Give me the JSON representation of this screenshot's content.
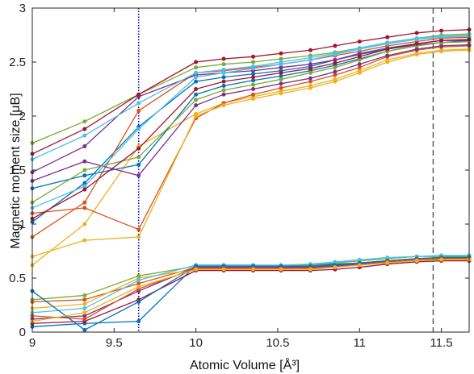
{
  "chart_data": {
    "type": "line",
    "xlabel": "Atomic Volume [Å³]",
    "ylabel": "Magnetic moment size [μB]",
    "xlim": [
      9,
      11.67
    ],
    "ylim": [
      0,
      3
    ],
    "x_ticks": [
      9,
      9.5,
      10,
      10.5,
      11,
      11.5
    ],
    "y_ticks": [
      0,
      0.5,
      1,
      1.5,
      2,
      2.5,
      3
    ],
    "x_tick_labels": [
      "9",
      "9.5",
      "10",
      "10.5",
      "11",
      "11.5"
    ],
    "y_tick_labels": [
      "0",
      "0.5",
      "1",
      "1.5",
      "2",
      "2.5",
      "3"
    ],
    "grid": false,
    "legend": "none",
    "x": [
      9.0,
      9.32,
      9.65,
      10.0,
      10.17,
      10.35,
      10.52,
      10.7,
      10.85,
      11.0,
      11.17,
      11.35,
      11.5,
      11.67
    ],
    "reference_lines": [
      {
        "x": 9.65,
        "style": "dotted",
        "color": "#0000cc"
      },
      {
        "x": 11.45,
        "style": "dashed",
        "color": "#555555"
      }
    ],
    "series": [
      {
        "color": "#0072bd",
        "values": [
          1.02,
          1.38,
          1.9,
          2.32,
          2.36,
          2.39,
          2.42,
          2.46,
          2.52,
          2.58,
          2.63,
          2.67,
          2.7,
          2.7
        ]
      },
      {
        "color": "#d95319",
        "values": [
          0.88,
          1.2,
          2.05,
          2.4,
          2.42,
          2.45,
          2.48,
          2.52,
          2.56,
          2.6,
          2.65,
          2.69,
          2.72,
          2.73
        ]
      },
      {
        "color": "#edb120",
        "values": [
          0.62,
          1.0,
          1.72,
          2.02,
          2.12,
          2.18,
          2.23,
          2.28,
          2.34,
          2.42,
          2.52,
          2.58,
          2.61,
          2.62
        ]
      },
      {
        "color": "#7e2f8e",
        "values": [
          1.48,
          1.72,
          2.18,
          2.38,
          2.4,
          2.42,
          2.45,
          2.48,
          2.52,
          2.57,
          2.62,
          2.66,
          2.68,
          2.7
        ]
      },
      {
        "color": "#77ac30",
        "values": [
          1.75,
          1.95,
          2.2,
          2.45,
          2.48,
          2.5,
          2.53,
          2.56,
          2.59,
          2.63,
          2.68,
          2.72,
          2.75,
          2.76
        ]
      },
      {
        "color": "#4dbeee",
        "values": [
          1.6,
          1.82,
          2.12,
          2.4,
          2.43,
          2.46,
          2.5,
          2.54,
          2.58,
          2.63,
          2.68,
          2.72,
          2.74,
          2.75
        ]
      },
      {
        "color": "#a2142f",
        "values": [
          1.65,
          1.88,
          2.2,
          2.5,
          2.53,
          2.55,
          2.58,
          2.61,
          2.65,
          2.69,
          2.73,
          2.77,
          2.79,
          2.8
        ]
      },
      {
        "color": "#0072bd",
        "values": [
          1.33,
          1.45,
          1.55,
          2.2,
          2.28,
          2.33,
          2.37,
          2.42,
          2.47,
          2.53,
          2.6,
          2.65,
          2.68,
          2.69
        ]
      },
      {
        "color": "#d95319",
        "values": [
          1.1,
          1.15,
          0.95,
          1.98,
          2.12,
          2.2,
          2.26,
          2.32,
          2.38,
          2.45,
          2.55,
          2.61,
          2.64,
          2.65
        ]
      },
      {
        "color": "#edb120",
        "values": [
          0.7,
          0.85,
          0.88,
          2.0,
          2.1,
          2.16,
          2.21,
          2.26,
          2.32,
          2.4,
          2.5,
          2.57,
          2.6,
          2.61
        ]
      },
      {
        "color": "#7e2f8e",
        "values": [
          1.4,
          1.58,
          1.45,
          2.1,
          2.2,
          2.25,
          2.3,
          2.35,
          2.41,
          2.48,
          2.56,
          2.62,
          2.65,
          2.66
        ]
      },
      {
        "color": "#77ac30",
        "values": [
          1.2,
          1.5,
          1.62,
          2.15,
          2.24,
          2.29,
          2.34,
          2.4,
          2.45,
          2.52,
          2.6,
          2.65,
          2.68,
          2.69
        ]
      },
      {
        "color": "#4dbeee",
        "values": [
          1.15,
          1.35,
          1.88,
          2.36,
          2.4,
          2.44,
          2.48,
          2.52,
          2.57,
          2.62,
          2.67,
          2.71,
          2.73,
          2.74
        ]
      },
      {
        "color": "#a2142f",
        "values": [
          1.05,
          1.32,
          1.7,
          2.25,
          2.32,
          2.36,
          2.4,
          2.44,
          2.49,
          2.55,
          2.62,
          2.67,
          2.7,
          2.71
        ]
      },
      {
        "color": "#0072bd",
        "values": [
          0.05,
          0.08,
          0.1,
          0.62,
          0.62,
          0.62,
          0.61,
          0.62,
          0.63,
          0.64,
          0.66,
          0.67,
          0.68,
          0.68
        ]
      },
      {
        "color": "#d95319",
        "values": [
          0.28,
          0.3,
          0.45,
          0.6,
          0.6,
          0.6,
          0.6,
          0.61,
          0.62,
          0.64,
          0.66,
          0.68,
          0.69,
          0.7
        ]
      },
      {
        "color": "#edb120",
        "values": [
          0.22,
          0.26,
          0.5,
          0.58,
          0.58,
          0.58,
          0.59,
          0.6,
          0.62,
          0.64,
          0.66,
          0.68,
          0.69,
          0.69
        ]
      },
      {
        "color": "#7e2f8e",
        "values": [
          0.12,
          0.15,
          0.38,
          0.6,
          0.6,
          0.6,
          0.6,
          0.6,
          0.61,
          0.63,
          0.65,
          0.67,
          0.68,
          0.68
        ]
      },
      {
        "color": "#77ac30",
        "values": [
          0.3,
          0.34,
          0.52,
          0.61,
          0.61,
          0.61,
          0.61,
          0.62,
          0.64,
          0.66,
          0.68,
          0.7,
          0.7,
          0.7
        ]
      },
      {
        "color": "#4dbeee",
        "values": [
          0.18,
          0.22,
          0.48,
          0.62,
          0.62,
          0.62,
          0.62,
          0.63,
          0.65,
          0.67,
          0.69,
          0.7,
          0.71,
          0.71
        ]
      },
      {
        "color": "#a2142f",
        "values": [
          0.08,
          0.1,
          0.3,
          0.57,
          0.57,
          0.57,
          0.57,
          0.57,
          0.58,
          0.6,
          0.63,
          0.65,
          0.66,
          0.66
        ]
      },
      {
        "color": "#0072bd",
        "values": [
          0.38,
          0.02,
          0.28,
          0.61,
          0.61,
          0.61,
          0.61,
          0.61,
          0.62,
          0.64,
          0.66,
          0.68,
          0.69,
          0.69
        ]
      },
      {
        "color": "#d95319",
        "values": [
          0.15,
          0.12,
          0.4,
          0.59,
          0.59,
          0.59,
          0.59,
          0.59,
          0.6,
          0.62,
          0.65,
          0.67,
          0.68,
          0.68
        ]
      },
      {
        "color": "#edb120",
        "values": [
          0.1,
          0.18,
          0.42,
          0.58,
          0.58,
          0.58,
          0.58,
          0.58,
          0.6,
          0.62,
          0.64,
          0.66,
          0.67,
          0.67
        ]
      }
    ]
  }
}
